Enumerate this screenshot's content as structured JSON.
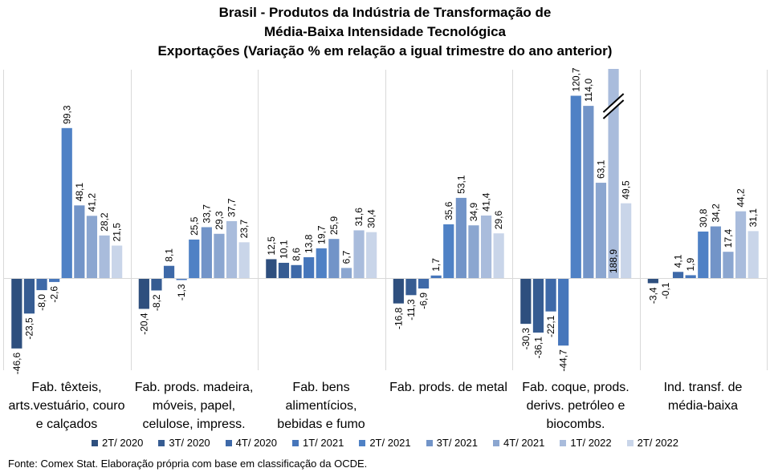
{
  "chart_data": {
    "type": "bar",
    "title": [
      "Brasil - Produtos da Indústria de Transformação de",
      "Média-Baixa Intensidade Tecnológica",
      "Exportações (Variação % em relação a igual trimestre do ano anterior)"
    ],
    "categories": [
      [
        "Fab. têxteis,",
        "arts.vestuário, couro",
        "e calçados"
      ],
      [
        "Fab. prods. madeira,",
        "móveis, papel,",
        "celulose, impress."
      ],
      [
        "Fab. bens",
        "alimentícios,",
        "bebidas e fumo"
      ],
      [
        "Fab. prods. de metal"
      ],
      [
        "Fab. coque, prods.",
        "derivs. petróleo e",
        "biocombs."
      ],
      [
        "Ind. transf. de",
        "média-baixa"
      ]
    ],
    "series": [
      {
        "name": "2T/ 2020",
        "color": "#2e4f7e",
        "values": [
          -46.6,
          -20.4,
          12.5,
          -16.8,
          -30.3,
          -3.4
        ]
      },
      {
        "name": "3T/ 2020",
        "color": "#365c92",
        "values": [
          -23.5,
          -8.2,
          10.1,
          -11.3,
          -36.1,
          -0.1
        ]
      },
      {
        "name": "4T/ 2020",
        "color": "#3e69a8",
        "values": [
          -8.0,
          8.1,
          8.6,
          -6.9,
          -22.1,
          4.1
        ]
      },
      {
        "name": "1T/ 2021",
        "color": "#4676bb",
        "values": [
          -2.6,
          -1.3,
          13.8,
          1.7,
          -44.7,
          1.9
        ]
      },
      {
        "name": "2T/ 2021",
        "color": "#4f81c5",
        "values": [
          99.3,
          25.5,
          19.7,
          35.6,
          120.7,
          30.8
        ]
      },
      {
        "name": "3T/ 2021",
        "color": "#7294c8",
        "values": [
          48.1,
          33.7,
          25.9,
          53.1,
          114.0,
          34.2
        ]
      },
      {
        "name": "4T/ 2021",
        "color": "#8ba6d0",
        "values": [
          41.2,
          29.3,
          6.7,
          34.9,
          63.1,
          17.4
        ]
      },
      {
        "name": "1T/ 2022",
        "color": "#a9bcdc",
        "values": [
          28.2,
          37.7,
          31.6,
          41.4,
          188.9,
          44.2
        ]
      },
      {
        "name": "2T/ 2022",
        "color": "#c9d5e9",
        "values": [
          21.5,
          23.7,
          30.4,
          29.6,
          49.5,
          31.1
        ]
      }
    ],
    "value_labels": [
      [
        "-46,6",
        "-20,4",
        "12,5",
        "-16,8",
        "-30,3",
        "-3,4"
      ],
      [
        "-23,5",
        "-8,2",
        "10,1",
        "-11,3",
        "-36,1",
        "-0,1"
      ],
      [
        "-8,0",
        "8,1",
        "8,6",
        "-6,9",
        "-22,1",
        "4,1"
      ],
      [
        "-2,6",
        "-1,3",
        "13,8",
        "1,7",
        "-44,7",
        "1,9"
      ],
      [
        "99,3",
        "25,5",
        "19,7",
        "35,6",
        "120,7",
        "30,8"
      ],
      [
        "48,1",
        "33,7",
        "25,9",
        "53,1",
        "114,0",
        "34,2"
      ],
      [
        "41,2",
        "29,3",
        "6,7",
        "34,9",
        "63,1",
        "17,4"
      ],
      [
        "28,2",
        "37,7",
        "31,6",
        "41,4",
        "188,9",
        "44,2"
      ],
      [
        "21,5",
        "23,7",
        "30,4",
        "29,6",
        "49,5",
        "31,1"
      ]
    ],
    "ylim": [
      -50,
      125
    ],
    "axis_break": {
      "category": 4,
      "series": 7
    },
    "grid": false,
    "legend_position": "bottom"
  },
  "source": "Fonte: Comex Stat. Elaboração própria com base em classificação da OCDE."
}
